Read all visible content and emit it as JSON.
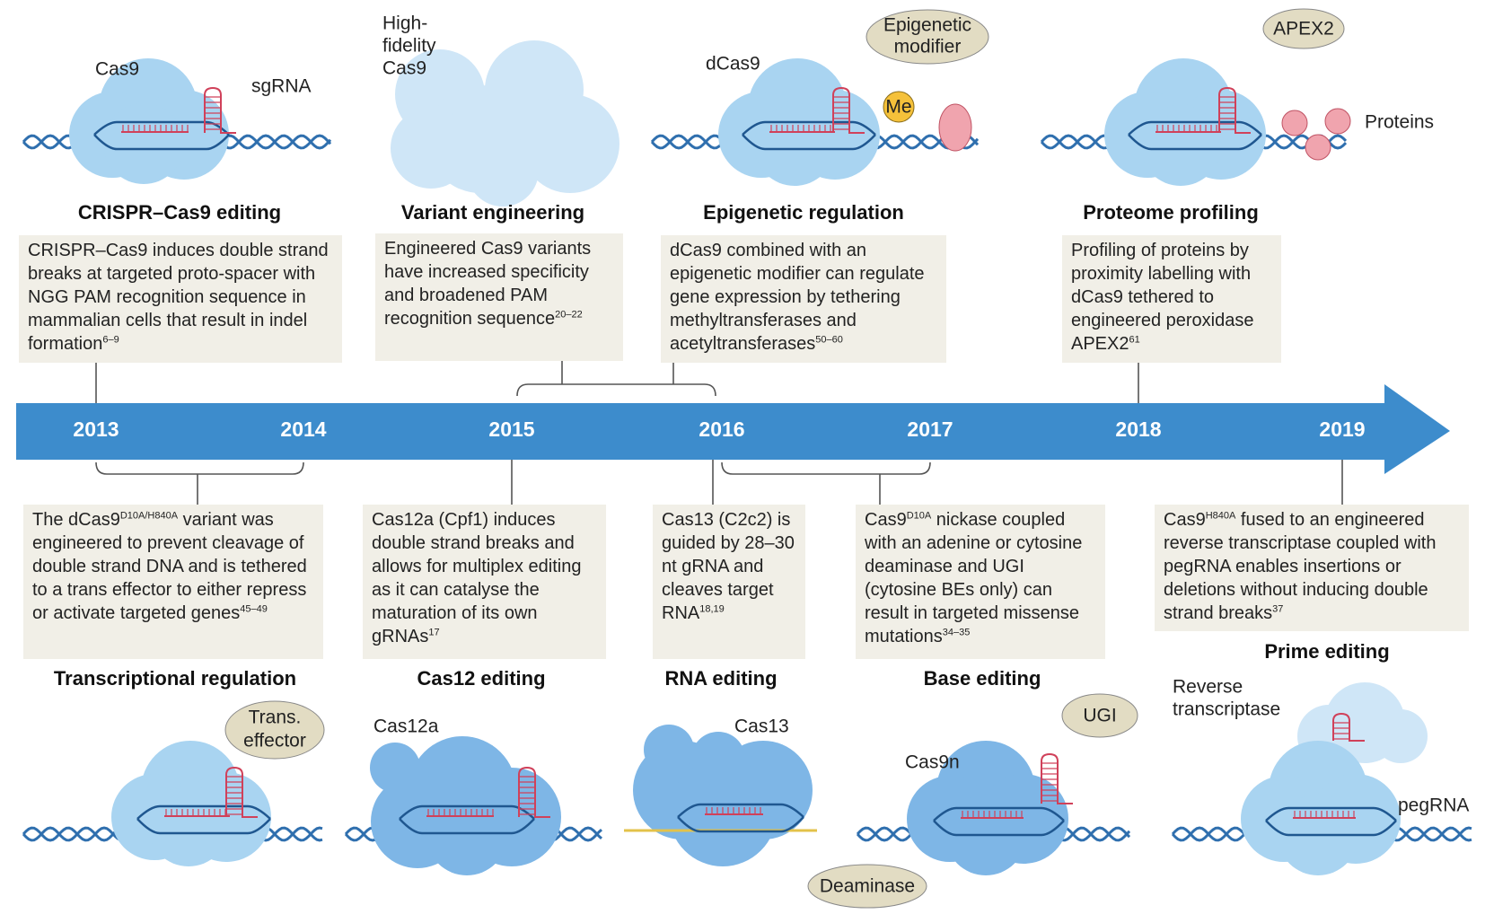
{
  "timeline": {
    "years": [
      "2013",
      "2014",
      "2015",
      "2016",
      "2017",
      "2018",
      "2019"
    ]
  },
  "top_panels": [
    {
      "title": "CRISPR–Cas9 editing",
      "description": [
        "CRISPR–Cas9 induces double strand breaks at targeted proto-spacer with NGG PAM recognition sequence in mammalian cells that result in indel formation",
        {
          "sup": "6–9"
        }
      ],
      "labels": [
        [
          "Cas9"
        ],
        [
          "sgRNA"
        ]
      ]
    },
    {
      "title": "Variant engineering",
      "description": [
        "Engineered Cas9 variants have increased specificity and broadened PAM recognition sequence",
        {
          "sup": "20–22"
        }
      ],
      "labels": [
        [
          "High-",
          "fidelity",
          "Cas9"
        ]
      ]
    },
    {
      "title": "Epigenetic regulation",
      "description": [
        "dCas9 combined with an epigenetic modifier can regulate gene expression by tethering methyltransferases and acetyltransferases",
        {
          "sup": "50–60"
        }
      ],
      "labels": [
        [
          "dCas9"
        ],
        [
          "Epigenetic",
          "modifier"
        ],
        [
          "Me"
        ]
      ]
    },
    {
      "title": "Proteome profiling",
      "description": [
        "Profiling of proteins by proximity labelling with dCas9 tethered to engineered peroxidase APEX2",
        {
          "sup": "61"
        }
      ],
      "labels": [
        [
          "APEX2"
        ],
        [
          "Proteins"
        ]
      ]
    }
  ],
  "bottom_panels": [
    {
      "title": "Transcriptional regulation",
      "description": [
        "The dCas9",
        {
          "sup": "D10A/H840A"
        },
        " variant was engineered to prevent cleavage of double strand DNA and is tethered to a trans effector to either repress or activate targeted genes",
        {
          "sup": "45–49"
        }
      ],
      "labels": [
        [
          "Trans.",
          "effector"
        ]
      ]
    },
    {
      "title": "Cas12 editing",
      "description": [
        "Cas12a (Cpf1) induces double strand breaks and allows for multiplex editing as it can catalyse the maturation of its own gRNAs",
        {
          "sup": "17"
        }
      ],
      "labels": [
        [
          "Cas12a"
        ]
      ]
    },
    {
      "title": "RNA editing",
      "description": [
        "Cas13 (C2c2) is guided by 28–30 nt gRNA and cleaves target RNA",
        {
          "sup": "18,19"
        }
      ],
      "labels": [
        [
          "Cas13"
        ]
      ]
    },
    {
      "title": "Base editing",
      "description": [
        "Cas9",
        {
          "sup": "D10A"
        },
        " nickase coupled with an adenine or cytosine deaminase and UGI (cytosine BEs only) can result in targeted missense mutations",
        {
          "sup": "34–35"
        }
      ],
      "labels": [
        [
          "UGI"
        ],
        [
          "Cas9n"
        ],
        [
          "Deaminase"
        ]
      ]
    },
    {
      "title": "Prime editing",
      "description": [
        "Cas9",
        {
          "sup": "H840A"
        },
        " fused to an engineered reverse transcriptase coupled with pegRNA enables insertions or deletions without inducing double strand breaks",
        {
          "sup": "37"
        }
      ],
      "labels": [
        [
          "Reverse",
          "transcriptase"
        ],
        [
          "pegRNA"
        ]
      ]
    }
  ]
}
